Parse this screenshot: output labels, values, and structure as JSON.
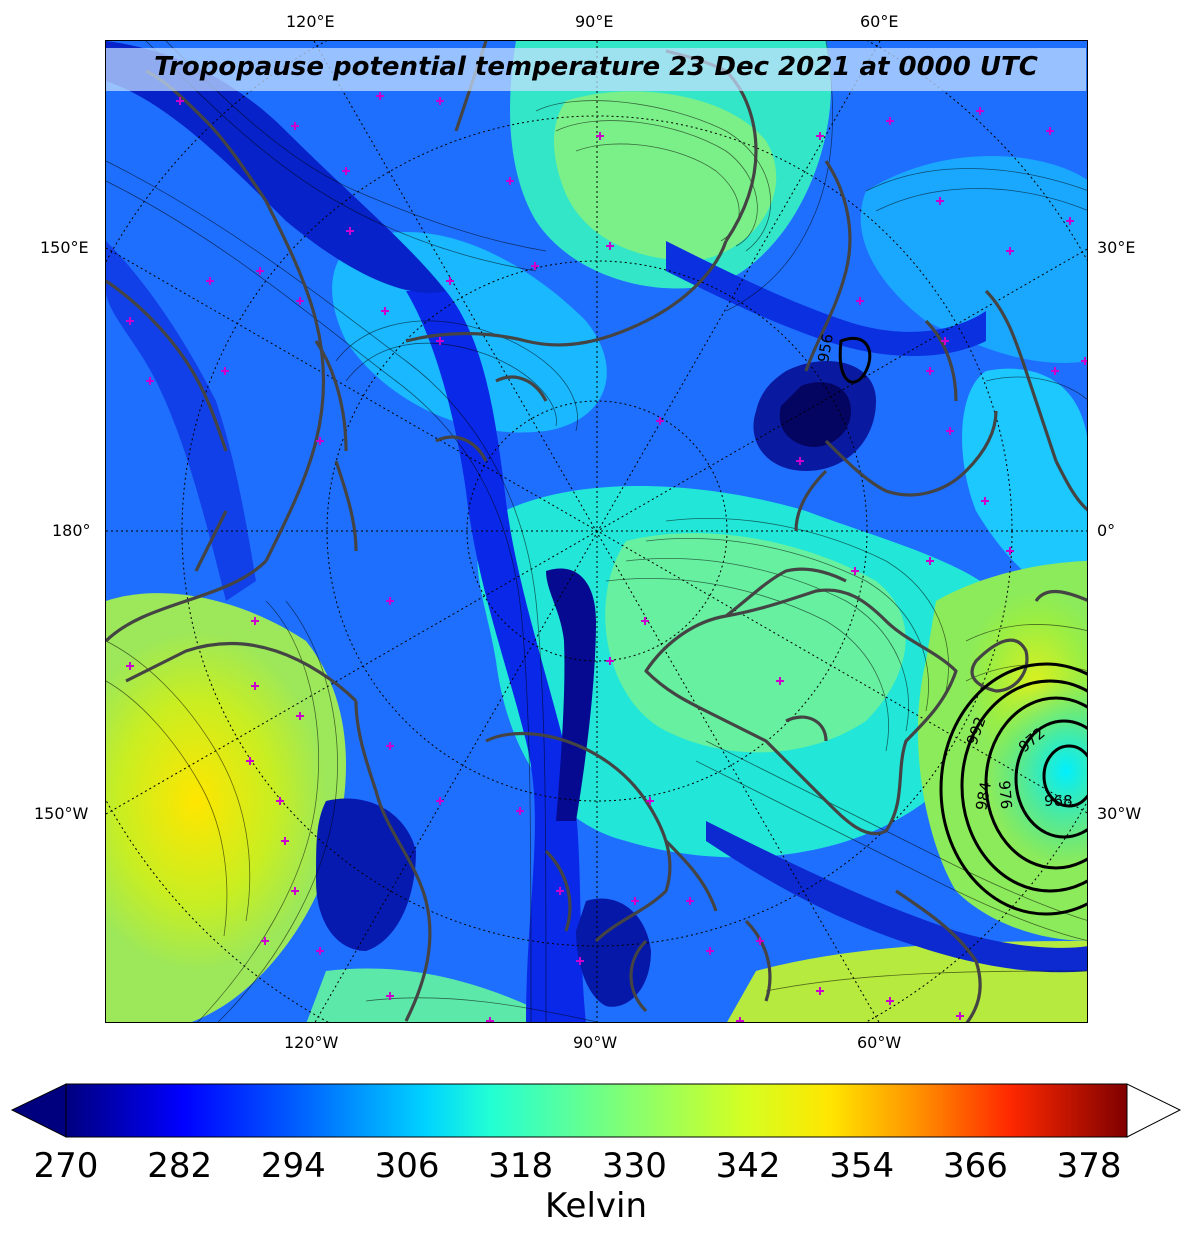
{
  "title": "Tropopause potential temperature 23 Dec 2021 at 0000 UTC",
  "lon_labels": {
    "top": [
      "120°E",
      "90°E",
      "60°E"
    ],
    "bottom": [
      "120°W",
      "90°W",
      "60°W"
    ],
    "left": [
      "150°E",
      "180°",
      "150°W"
    ],
    "right": [
      "30°E",
      "0°",
      "30°W"
    ]
  },
  "pressure_contours": [
    "968",
    "976",
    "984",
    "992",
    "972",
    "956"
  ],
  "colorbar": {
    "label": "Kelvin",
    "ticks": [
      "270",
      "282",
      "294",
      "306",
      "318",
      "330",
      "342",
      "354",
      "366",
      "378"
    ],
    "min": 270,
    "max": 382,
    "extend": "both"
  },
  "colors": {
    "cold": "#00008b",
    "mid": "#00e5ff",
    "warm": "#f0f000",
    "hot": "#800000",
    "coastline": "#444444",
    "station_marker": "#cc00cc"
  }
}
